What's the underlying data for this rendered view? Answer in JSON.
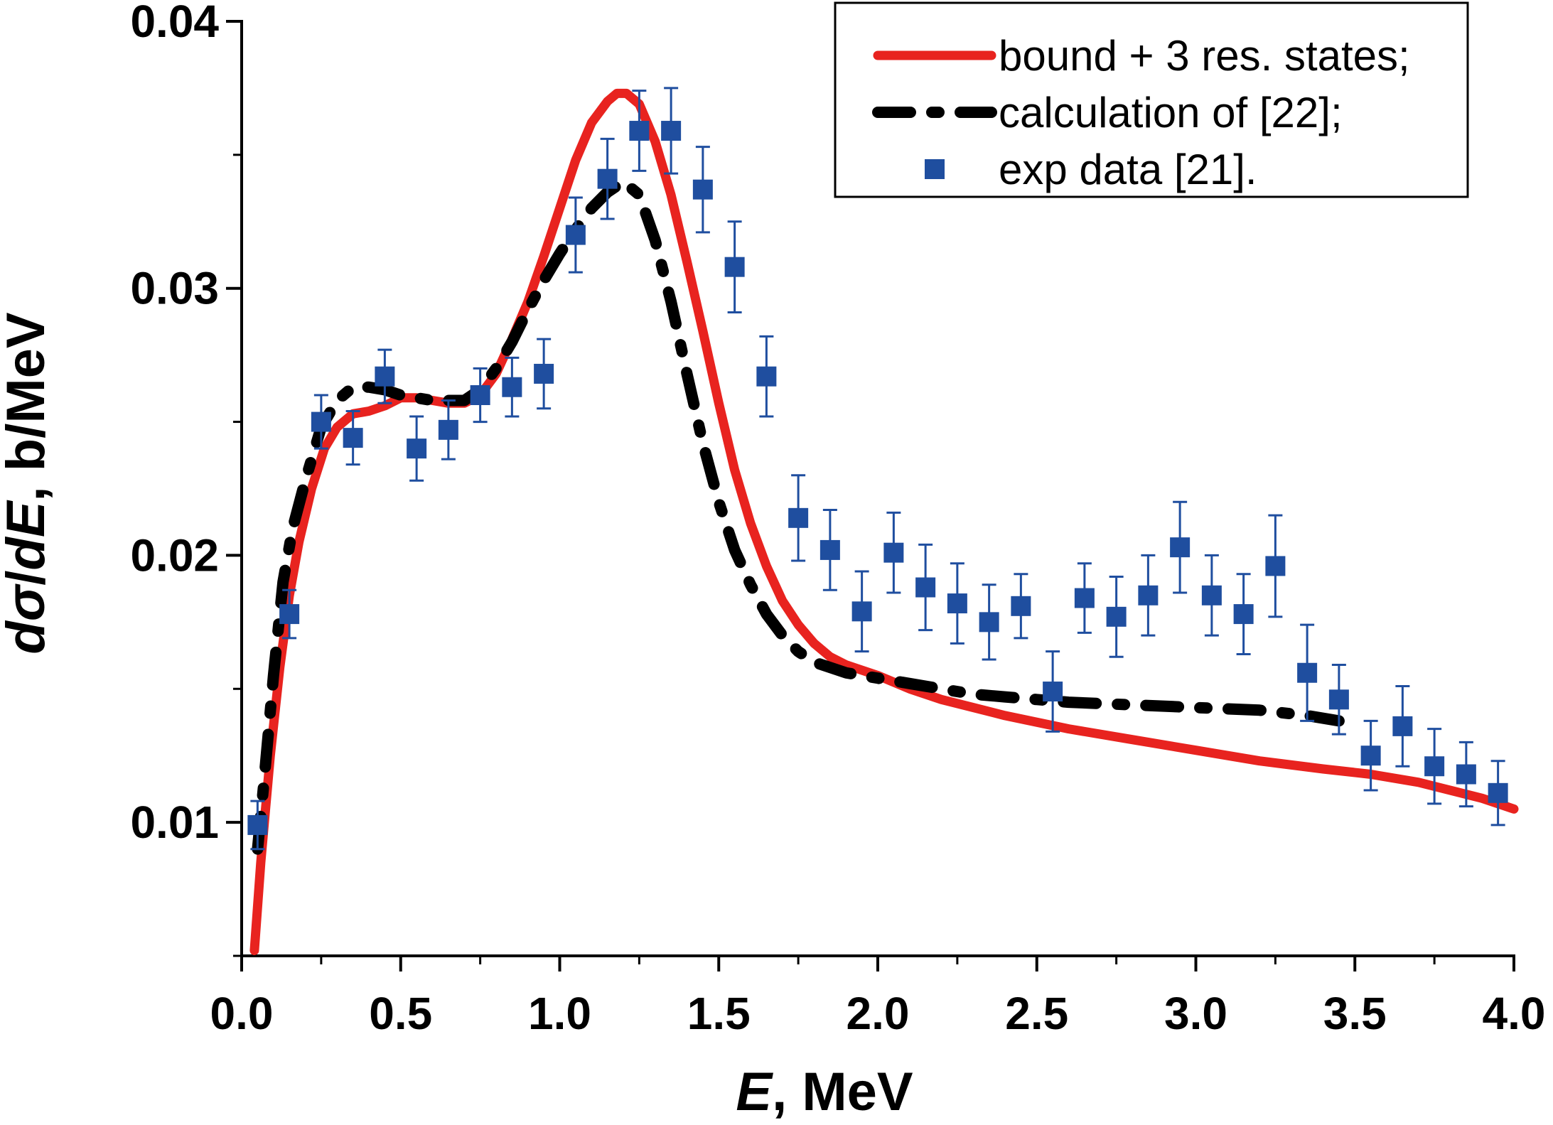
{
  "chart_data": {
    "type": "line",
    "title": "",
    "xlabel": {
      "italic": "E",
      "rest": ", MeV"
    },
    "ylabel": {
      "parts": [
        {
          "text": "d",
          "italic": true
        },
        {
          "text": "σ",
          "italic": true
        },
        {
          "text": "/",
          "italic": false
        },
        {
          "text": "dE",
          "italic": true
        },
        {
          "text": ", b/MeV",
          "italic": false
        }
      ]
    },
    "xlim": [
      0.0,
      4.0
    ],
    "ylim": [
      0.005,
      0.04
    ],
    "xticks": [
      0.0,
      0.5,
      1.0,
      1.5,
      2.0,
      2.5,
      3.0,
      3.5,
      4.0
    ],
    "xtick_labels": [
      "0.0",
      "0.5",
      "1.0",
      "1.5",
      "2.0",
      "2.5",
      "3.0",
      "3.5",
      "4.0"
    ],
    "yticks": [
      0.01,
      0.02,
      0.03,
      0.04
    ],
    "ytick_labels": [
      "0.01",
      "0.02",
      "0.03",
      "0.04"
    ],
    "grid": false,
    "legend_position": "top-right",
    "series": [
      {
        "name": "bound + 3 res. states;",
        "style": "solid",
        "color": "#e8231f",
        "x": [
          0.04,
          0.06,
          0.09,
          0.12,
          0.15,
          0.18,
          0.22,
          0.26,
          0.3,
          0.35,
          0.4,
          0.45,
          0.5,
          0.55,
          0.6,
          0.65,
          0.7,
          0.75,
          0.8,
          0.85,
          0.9,
          0.95,
          1.0,
          1.05,
          1.1,
          1.15,
          1.18,
          1.21,
          1.25,
          1.3,
          1.35,
          1.4,
          1.45,
          1.5,
          1.55,
          1.6,
          1.65,
          1.7,
          1.75,
          1.8,
          1.85,
          1.9,
          1.95,
          2.0,
          2.1,
          2.2,
          2.3,
          2.4,
          2.6,
          2.8,
          3.0,
          3.2,
          3.4,
          3.55,
          3.7,
          3.8,
          3.9,
          4.0
        ],
        "y": [
          0.0052,
          0.0085,
          0.0125,
          0.0158,
          0.0185,
          0.0205,
          0.0225,
          0.024,
          0.0248,
          0.0253,
          0.0254,
          0.0256,
          0.0259,
          0.0259,
          0.0258,
          0.0257,
          0.0257,
          0.026,
          0.0268,
          0.0281,
          0.0295,
          0.0312,
          0.033,
          0.0348,
          0.0362,
          0.037,
          0.0373,
          0.0373,
          0.0369,
          0.0355,
          0.0335,
          0.031,
          0.0284,
          0.0257,
          0.0232,
          0.0212,
          0.0196,
          0.0183,
          0.0174,
          0.0167,
          0.0162,
          0.0159,
          0.0157,
          0.0155,
          0.015,
          0.0146,
          0.0143,
          0.014,
          0.0135,
          0.0131,
          0.0127,
          0.0123,
          0.012,
          0.0118,
          0.0115,
          0.0112,
          0.0109,
          0.0105
        ]
      },
      {
        "name": "calculation of [22];",
        "style": "dash-dot",
        "color": "#000000",
        "x": [
          0.05,
          0.07,
          0.1,
          0.13,
          0.16,
          0.2,
          0.25,
          0.3,
          0.35,
          0.4,
          0.45,
          0.5,
          0.55,
          0.6,
          0.65,
          0.7,
          0.75,
          0.8,
          0.85,
          0.9,
          0.95,
          1.0,
          1.05,
          1.1,
          1.15,
          1.2,
          1.25,
          1.3,
          1.35,
          1.4,
          1.45,
          1.5,
          1.55,
          1.6,
          1.65,
          1.7,
          1.75,
          1.8,
          1.85,
          1.9,
          1.95,
          2.0,
          2.1,
          2.2,
          2.3,
          2.4,
          2.5,
          2.6,
          2.8,
          3.0,
          3.2,
          3.35,
          3.45
        ],
        "y": [
          0.009,
          0.0115,
          0.0155,
          0.019,
          0.021,
          0.0228,
          0.0248,
          0.0258,
          0.0263,
          0.0263,
          0.0262,
          0.026,
          0.0259,
          0.0258,
          0.0258,
          0.0258,
          0.0262,
          0.027,
          0.028,
          0.0292,
          0.0303,
          0.0313,
          0.0322,
          0.033,
          0.0336,
          0.034,
          0.0335,
          0.0318,
          0.0295,
          0.0268,
          0.0242,
          0.022,
          0.0202,
          0.0189,
          0.0178,
          0.017,
          0.0164,
          0.016,
          0.0158,
          0.0156,
          0.0155,
          0.0154,
          0.0152,
          0.015,
          0.0148,
          0.0147,
          0.0146,
          0.0145,
          0.0144,
          0.0143,
          0.0142,
          0.014,
          0.0138
        ]
      }
    ],
    "scatter": {
      "name": "exp data [21].",
      "color": "#1f4e9f",
      "x": [
        0.05,
        0.15,
        0.25,
        0.35,
        0.45,
        0.55,
        0.65,
        0.75,
        0.85,
        0.95,
        1.05,
        1.15,
        1.25,
        1.35,
        1.45,
        1.55,
        1.65,
        1.75,
        1.85,
        1.95,
        2.05,
        2.15,
        2.25,
        2.35,
        2.45,
        2.55,
        2.65,
        2.75,
        2.85,
        2.95,
        3.05,
        3.15,
        3.25,
        3.35,
        3.45,
        3.55,
        3.65,
        3.75,
        3.85,
        3.95
      ],
      "y": [
        0.0099,
        0.0178,
        0.025,
        0.0244,
        0.0267,
        0.024,
        0.0247,
        0.026,
        0.0263,
        0.0268,
        0.032,
        0.0341,
        0.0359,
        0.0359,
        0.0337,
        0.0308,
        0.0267,
        0.0214,
        0.0202,
        0.0179,
        0.0201,
        0.0188,
        0.0182,
        0.0175,
        0.0181,
        0.0149,
        0.0184,
        0.0177,
        0.0185,
        0.0203,
        0.0185,
        0.0178,
        0.0196,
        0.0156,
        0.0146,
        0.0125,
        0.0136,
        0.0121,
        0.0118,
        0.0111
      ],
      "err": [
        0.0009,
        0.0009,
        0.001,
        0.001,
        0.001,
        0.0012,
        0.0011,
        0.001,
        0.0011,
        0.0013,
        0.0014,
        0.0015,
        0.0015,
        0.0016,
        0.0016,
        0.0017,
        0.0015,
        0.0016,
        0.0015,
        0.0015,
        0.0015,
        0.0016,
        0.0015,
        0.0014,
        0.0012,
        0.0015,
        0.0013,
        0.0015,
        0.0015,
        0.0017,
        0.0015,
        0.0015,
        0.0019,
        0.0018,
        0.0013,
        0.0013,
        0.0015,
        0.0014,
        0.0012,
        0.0012
      ]
    }
  }
}
